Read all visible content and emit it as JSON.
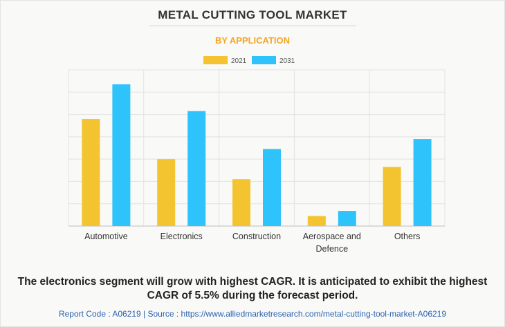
{
  "title": "METAL CUTTING TOOL MARKET",
  "subtitle": "BY APPLICATION",
  "colors": {
    "series_2021": "#f4c430",
    "series_2031": "#2ec4fb",
    "subtitle": "#f5a623",
    "grid": "#e2e2e2",
    "footer": "#2a62b0"
  },
  "chart_data": {
    "type": "bar",
    "categories": [
      "Automotive",
      "Electronics",
      "Construction",
      "Aerospace and\nDefence",
      "Others"
    ],
    "series": [
      {
        "name": "2021",
        "values": [
          4.8,
          3.0,
          2.1,
          0.45,
          2.65
        ]
      },
      {
        "name": "2031",
        "values": [
          6.35,
          5.15,
          3.45,
          0.68,
          3.9
        ]
      }
    ],
    "ylim": [
      0,
      7
    ],
    "grid": true,
    "legend": "top-center",
    "xlabel": "",
    "ylabel": ""
  },
  "caption": "The electronics segment will grow with highest CAGR. It is anticipated to exhibit the highest CAGR of 5.5% during the forecast period.",
  "footer": "Report Code : A06219  |  Source : https://www.alliedmarketresearch.com/metal-cutting-tool-market-A06219"
}
